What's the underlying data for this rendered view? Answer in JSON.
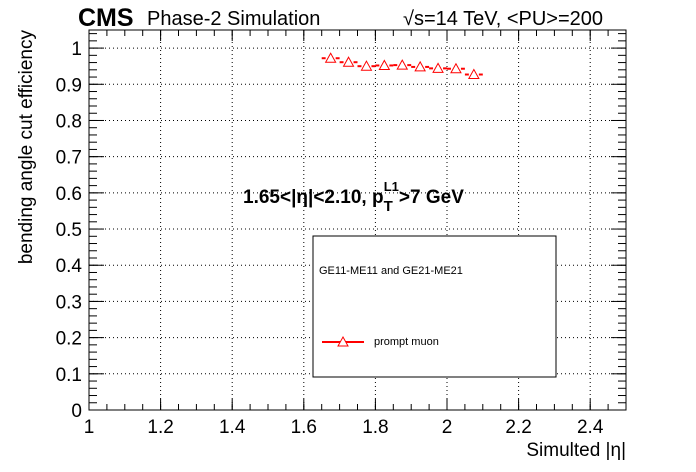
{
  "header": {
    "cms_label": "CMS",
    "sim_label": "Phase-2 Simulation",
    "energy_label": "√s=14 TeV, <PU>=200"
  },
  "annotation": {
    "eta_part": "1.65<|η|<2.10, p",
    "sub": "T",
    "sup": "L1",
    "rest": ">7 GeV"
  },
  "legend": {
    "header": "GE11-ME11 and GE21-ME21",
    "entries": [
      "prompt muon"
    ]
  },
  "colors": {
    "series": "#ff0000",
    "grid": "#000000"
  },
  "chart_data": {
    "type": "scatter",
    "xlabel": "Simulted |η|",
    "ylabel": "bending angle cut efficiency",
    "xlim": [
      1.0,
      2.5
    ],
    "ylim": [
      0.0,
      1.05
    ],
    "xticks": [
      "1",
      "1.2",
      "1.4",
      "1.6",
      "1.8",
      "2",
      "2.2",
      "2.4"
    ],
    "yticks": [
      "0",
      "0.1",
      "0.2",
      "0.3",
      "0.4",
      "0.5",
      "0.6",
      "0.7",
      "0.8",
      "0.9",
      "1"
    ],
    "grid": true,
    "legend_position": "lower-right",
    "series": [
      {
        "name": "prompt muon",
        "marker": "open-triangle",
        "x": [
          1.675,
          1.725,
          1.775,
          1.825,
          1.875,
          1.925,
          1.975,
          2.025,
          2.075
        ],
        "y": [
          0.972,
          0.961,
          0.95,
          0.952,
          0.953,
          0.948,
          0.944,
          0.943,
          0.927
        ],
        "xerr": [
          0.025,
          0.025,
          0.025,
          0.025,
          0.025,
          0.025,
          0.025,
          0.025,
          0.025
        ]
      }
    ]
  }
}
